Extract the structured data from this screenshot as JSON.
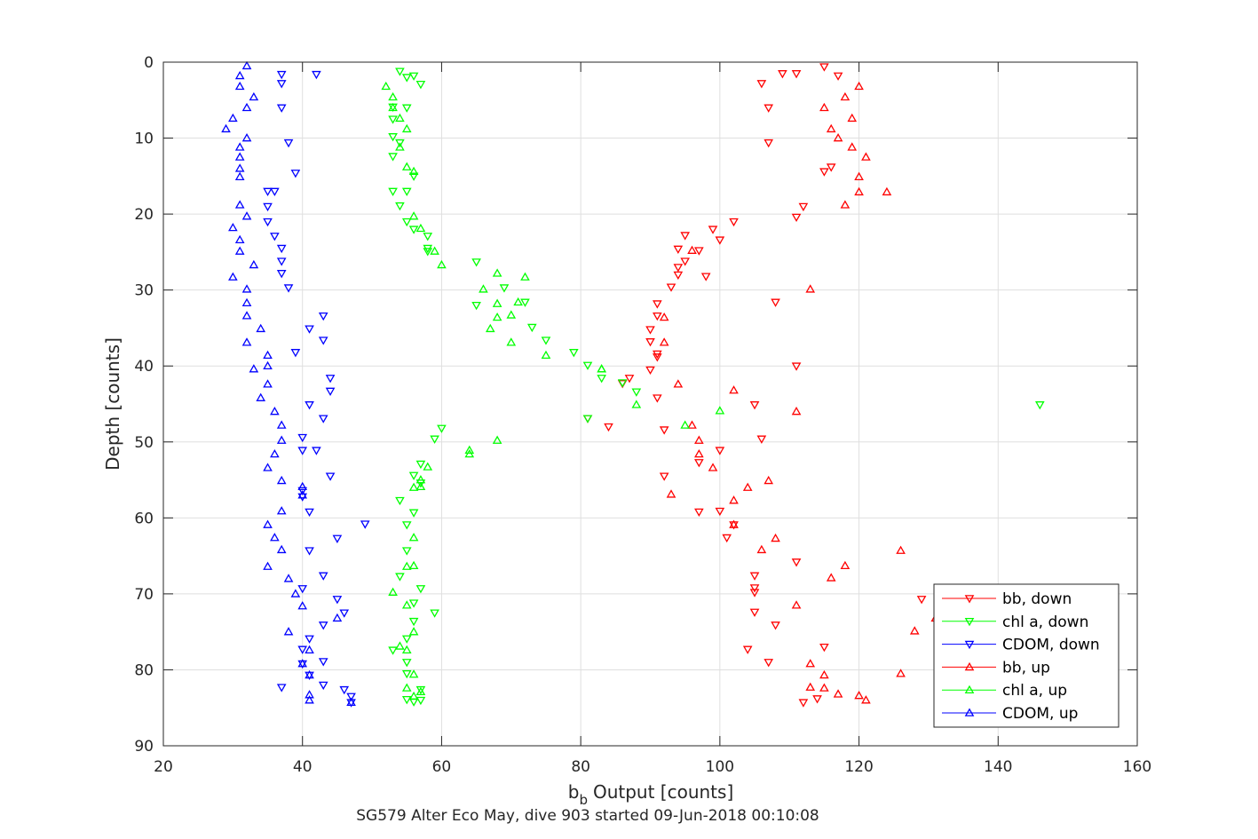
{
  "chart_data": {
    "type": "scatter",
    "title": "",
    "caption": "SG579 Alter Eco May, dive 903 started 09-Jun-2018 00:10:08",
    "xlabel_main": "b",
    "xlabel_sub": "b",
    "xlabel_rest": "Output [counts]",
    "ylabel": "Depth [counts]",
    "xlim": [
      20,
      160
    ],
    "ylim": [
      0,
      90
    ],
    "y_reversed": true,
    "grid": true,
    "legend_position": "bottom-right",
    "xticks": [
      "20",
      "40",
      "60",
      "80",
      "100",
      "120",
      "140",
      "160"
    ],
    "yticks": [
      "0",
      "10",
      "20",
      "30",
      "40",
      "50",
      "60",
      "70",
      "80",
      "90"
    ],
    "series": [
      {
        "name": "bb, down",
        "color": "#ff0000",
        "marker": "triangle-down",
        "points": [
          [
            115,
            0.6
          ],
          [
            109,
            1.5
          ],
          [
            111,
            1.5
          ],
          [
            117,
            1.8
          ],
          [
            106,
            2.8
          ],
          [
            107,
            6.0
          ],
          [
            107,
            10.6
          ],
          [
            115,
            14.4
          ],
          [
            116,
            13.8
          ],
          [
            112,
            19.0
          ],
          [
            111,
            20.4
          ],
          [
            102,
            21.0
          ],
          [
            99,
            22.0
          ],
          [
            95,
            22.8
          ],
          [
            100,
            23.4
          ],
          [
            97,
            24.8
          ],
          [
            94,
            24.6
          ],
          [
            95,
            26.2
          ],
          [
            94,
            27.0
          ],
          [
            94,
            28.0
          ],
          [
            98,
            28.2
          ],
          [
            93,
            29.6
          ],
          [
            108,
            31.6
          ],
          [
            91,
            31.8
          ],
          [
            91,
            33.4
          ],
          [
            90,
            35.2
          ],
          [
            90,
            36.8
          ],
          [
            91,
            38.4
          ],
          [
            91,
            38.8
          ],
          [
            111,
            40.0
          ],
          [
            90,
            40.5
          ],
          [
            87,
            41.6
          ],
          [
            86,
            42.3
          ],
          [
            91,
            44.2
          ],
          [
            105,
            45.1
          ],
          [
            81,
            46.9
          ],
          [
            84,
            48.0
          ],
          [
            92,
            48.4
          ],
          [
            106,
            49.6
          ],
          [
            100,
            51.1
          ],
          [
            97,
            52.7
          ],
          [
            92,
            54.5
          ],
          [
            97,
            59.2
          ],
          [
            100,
            59.1
          ],
          [
            102,
            60.9
          ],
          [
            101,
            62.6
          ],
          [
            111,
            65.8
          ],
          [
            105,
            67.6
          ],
          [
            105,
            69.2
          ],
          [
            105,
            69.8
          ],
          [
            129,
            70.7
          ],
          [
            105,
            72.4
          ],
          [
            108,
            74.1
          ],
          [
            104,
            77.3
          ],
          [
            107,
            79.0
          ],
          [
            115,
            77.0
          ],
          [
            112,
            84.3
          ],
          [
            114,
            83.8
          ]
        ]
      },
      {
        "name": "chl a, down",
        "color": "#00ff00",
        "marker": "triangle-down",
        "points": [
          [
            54,
            1.2
          ],
          [
            56,
            1.8
          ],
          [
            55,
            2.0
          ],
          [
            57,
            2.9
          ],
          [
            53,
            5.9
          ],
          [
            55,
            6.0
          ],
          [
            53,
            7.5
          ],
          [
            53,
            9.8
          ],
          [
            54,
            10.6
          ],
          [
            53,
            12.4
          ],
          [
            56,
            15.0
          ],
          [
            53,
            17.0
          ],
          [
            55,
            17.0
          ],
          [
            54,
            18.9
          ],
          [
            55,
            21.0
          ],
          [
            56,
            22.0
          ],
          [
            58,
            22.9
          ],
          [
            58,
            24.5
          ],
          [
            58,
            24.9
          ],
          [
            65,
            26.3
          ],
          [
            69,
            29.7
          ],
          [
            65,
            32.0
          ],
          [
            72,
            31.6
          ],
          [
            73,
            34.9
          ],
          [
            75,
            36.6
          ],
          [
            79,
            38.2
          ],
          [
            81,
            39.9
          ],
          [
            83,
            41.6
          ],
          [
            86,
            42.2
          ],
          [
            88,
            43.4
          ],
          [
            146,
            45.1
          ],
          [
            81,
            46.9
          ],
          [
            59,
            49.6
          ],
          [
            60,
            48.2
          ],
          [
            57,
            52.9
          ],
          [
            57,
            55.4
          ],
          [
            56,
            54.4
          ],
          [
            54,
            57.7
          ],
          [
            55,
            60.9
          ],
          [
            56,
            59.3
          ],
          [
            55,
            64.3
          ],
          [
            54,
            67.7
          ],
          [
            57,
            69.3
          ],
          [
            56,
            71.2
          ],
          [
            59,
            72.5
          ],
          [
            53,
            77.4
          ],
          [
            55,
            75.9
          ],
          [
            56,
            73.6
          ],
          [
            55,
            79.0
          ],
          [
            55,
            80.5
          ],
          [
            57,
            82.6
          ],
          [
            55,
            83.9
          ],
          [
            57,
            84.0
          ],
          [
            56,
            84.2
          ]
        ]
      },
      {
        "name": "CDOM, down",
        "color": "#0000ff",
        "marker": "triangle-down",
        "points": [
          [
            37,
            1.6
          ],
          [
            42,
            1.6
          ],
          [
            37,
            2.8
          ],
          [
            37,
            6.0
          ],
          [
            38,
            10.6
          ],
          [
            39,
            14.6
          ],
          [
            35,
            17.0
          ],
          [
            36,
            17.0
          ],
          [
            35,
            19.0
          ],
          [
            35,
            21.0
          ],
          [
            36,
            22.9
          ],
          [
            37,
            24.5
          ],
          [
            37,
            26.2
          ],
          [
            37,
            27.8
          ],
          [
            38,
            29.7
          ],
          [
            39,
            38.2
          ],
          [
            43,
            33.4
          ],
          [
            41,
            35.1
          ],
          [
            43,
            36.6
          ],
          [
            44,
            41.6
          ],
          [
            44,
            43.3
          ],
          [
            41,
            45.1
          ],
          [
            43,
            46.9
          ],
          [
            40,
            49.4
          ],
          [
            40,
            51.1
          ],
          [
            42,
            51.1
          ],
          [
            44,
            54.5
          ],
          [
            40,
            56.4
          ],
          [
            40,
            57.2
          ],
          [
            41,
            59.2
          ],
          [
            49,
            60.8
          ],
          [
            45,
            62.7
          ],
          [
            41,
            64.3
          ],
          [
            43,
            67.6
          ],
          [
            40,
            69.3
          ],
          [
            45,
            70.7
          ],
          [
            46,
            72.5
          ],
          [
            43,
            74.1
          ],
          [
            41,
            75.9
          ],
          [
            40,
            77.3
          ],
          [
            43,
            78.9
          ],
          [
            40,
            79.2
          ],
          [
            41,
            80.7
          ],
          [
            43,
            82.0
          ],
          [
            37,
            82.3
          ],
          [
            46,
            82.6
          ],
          [
            47,
            83.5
          ],
          [
            47,
            84.3
          ]
        ]
      },
      {
        "name": "bb, up",
        "color": "#ff0000",
        "marker": "triangle-up",
        "points": [
          [
            120,
            3.2
          ],
          [
            118,
            4.6
          ],
          [
            115,
            6.0
          ],
          [
            119,
            7.4
          ],
          [
            116,
            8.8
          ],
          [
            117,
            10.0
          ],
          [
            119,
            11.2
          ],
          [
            121,
            12.5
          ],
          [
            120,
            15.1
          ],
          [
            120,
            17.1
          ],
          [
            124,
            17.1
          ],
          [
            118,
            18.8
          ],
          [
            96,
            24.8
          ],
          [
            92,
            33.6
          ],
          [
            92,
            36.9
          ],
          [
            113,
            29.9
          ],
          [
            94,
            42.4
          ],
          [
            102,
            43.2
          ],
          [
            111,
            46.0
          ],
          [
            96,
            47.8
          ],
          [
            97,
            49.8
          ],
          [
            97,
            51.6
          ],
          [
            99,
            53.4
          ],
          [
            104,
            56.0
          ],
          [
            107,
            55.1
          ],
          [
            102,
            57.7
          ],
          [
            93,
            56.9
          ],
          [
            102,
            60.9
          ],
          [
            108,
            62.7
          ],
          [
            126,
            64.3
          ],
          [
            106,
            64.2
          ],
          [
            118,
            66.3
          ],
          [
            116,
            67.9
          ],
          [
            111,
            71.5
          ],
          [
            131,
            73.2
          ],
          [
            128,
            74.9
          ],
          [
            126,
            80.5
          ],
          [
            113,
            79.2
          ],
          [
            115,
            80.7
          ],
          [
            113,
            82.3
          ],
          [
            115,
            82.4
          ],
          [
            117,
            83.2
          ],
          [
            120,
            83.4
          ],
          [
            121,
            84.0
          ]
        ]
      },
      {
        "name": "chl a, up",
        "color": "#00ff00",
        "marker": "triangle-up",
        "points": [
          [
            52,
            3.2
          ],
          [
            53,
            4.6
          ],
          [
            53,
            6.0
          ],
          [
            54,
            7.4
          ],
          [
            55,
            8.8
          ],
          [
            54,
            11.2
          ],
          [
            55,
            13.8
          ],
          [
            56,
            14.4
          ],
          [
            56,
            20.3
          ],
          [
            57,
            21.9
          ],
          [
            59,
            24.9
          ],
          [
            60,
            26.7
          ],
          [
            68,
            27.8
          ],
          [
            72,
            28.3
          ],
          [
            66,
            29.9
          ],
          [
            71,
            31.6
          ],
          [
            68,
            31.8
          ],
          [
            70,
            33.3
          ],
          [
            68,
            33.6
          ],
          [
            67,
            35.1
          ],
          [
            70,
            36.9
          ],
          [
            75,
            38.6
          ],
          [
            83,
            40.4
          ],
          [
            83,
            40.4
          ],
          [
            88,
            45.1
          ],
          [
            100,
            45.9
          ],
          [
            95,
            47.8
          ],
          [
            68,
            49.8
          ],
          [
            64,
            51.1
          ],
          [
            64,
            51.6
          ],
          [
            58,
            53.3
          ],
          [
            57,
            55.0
          ],
          [
            57,
            55.9
          ],
          [
            56,
            56.0
          ],
          [
            56,
            62.6
          ],
          [
            55,
            66.4
          ],
          [
            56,
            66.3
          ],
          [
            53,
            69.8
          ],
          [
            55,
            71.5
          ],
          [
            56,
            75.0
          ],
          [
            55,
            77.4
          ],
          [
            54,
            76.9
          ],
          [
            56,
            80.6
          ],
          [
            55,
            82.4
          ],
          [
            57,
            82.9
          ],
          [
            56,
            83.5
          ]
        ]
      },
      {
        "name": "CDOM, up",
        "color": "#0000ff",
        "marker": "triangle-up",
        "points": [
          [
            32,
            0.5
          ],
          [
            31,
            1.8
          ],
          [
            31,
            3.2
          ],
          [
            33,
            4.6
          ],
          [
            32,
            6.0
          ],
          [
            30,
            7.4
          ],
          [
            29,
            8.8
          ],
          [
            32,
            10.0
          ],
          [
            31,
            11.2
          ],
          [
            31,
            12.5
          ],
          [
            31,
            14.0
          ],
          [
            31,
            15.1
          ],
          [
            31,
            18.8
          ],
          [
            32,
            20.3
          ],
          [
            30,
            21.8
          ],
          [
            31,
            23.4
          ],
          [
            31,
            24.9
          ],
          [
            33,
            26.7
          ],
          [
            30,
            28.3
          ],
          [
            32,
            29.9
          ],
          [
            32,
            31.7
          ],
          [
            32,
            33.4
          ],
          [
            34,
            35.1
          ],
          [
            32,
            36.9
          ],
          [
            35,
            38.6
          ],
          [
            35,
            40.0
          ],
          [
            33,
            40.4
          ],
          [
            35,
            42.4
          ],
          [
            34,
            44.2
          ],
          [
            36,
            46.0
          ],
          [
            37,
            47.8
          ],
          [
            37,
            49.8
          ],
          [
            36,
            51.6
          ],
          [
            35,
            53.4
          ],
          [
            37,
            55.1
          ],
          [
            40,
            55.9
          ],
          [
            40,
            57.0
          ],
          [
            37,
            59.1
          ],
          [
            35,
            60.9
          ],
          [
            36,
            62.6
          ],
          [
            37,
            64.2
          ],
          [
            35,
            66.4
          ],
          [
            38,
            68.0
          ],
          [
            39,
            70.0
          ],
          [
            40,
            71.6
          ],
          [
            45,
            73.2
          ],
          [
            38,
            75.0
          ],
          [
            41,
            77.4
          ],
          [
            40,
            79.2
          ],
          [
            41,
            80.7
          ],
          [
            41,
            83.3
          ],
          [
            41,
            84.0
          ],
          [
            47,
            84.3
          ]
        ]
      }
    ]
  }
}
